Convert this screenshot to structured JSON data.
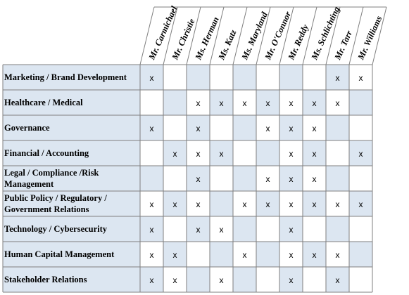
{
  "columns": [
    "Mr. Carmichael",
    "Mr. Christie",
    "Ms. Herman",
    "Ms. Katz",
    "Ms. Maryland",
    "Mr. O'Connor",
    "Mr. Reddy",
    "Ms. Schlichting",
    "Mr. Tarr",
    "Mr. Williams"
  ],
  "rows": [
    {
      "label": [
        "Marketing / Brand Development"
      ],
      "marks": [
        1,
        0,
        0,
        0,
        0,
        0,
        0,
        0,
        1,
        1
      ]
    },
    {
      "label": [
        "Healthcare / Medical"
      ],
      "marks": [
        0,
        0,
        1,
        1,
        1,
        1,
        1,
        1,
        1,
        0
      ]
    },
    {
      "label": [
        "Governance"
      ],
      "marks": [
        1,
        0,
        1,
        0,
        0,
        1,
        1,
        1,
        0,
        0
      ]
    },
    {
      "label": [
        "Financial / Accounting"
      ],
      "marks": [
        0,
        1,
        1,
        1,
        0,
        0,
        1,
        1,
        0,
        1
      ]
    },
    {
      "label": [
        "Legal / Compliance /Risk",
        "Management"
      ],
      "marks": [
        0,
        0,
        1,
        0,
        0,
        1,
        1,
        1,
        0,
        0
      ]
    },
    {
      "label": [
        "Public Policy / Regulatory /",
        "Government Relations"
      ],
      "marks": [
        1,
        1,
        1,
        0,
        1,
        1,
        1,
        1,
        1,
        1
      ]
    },
    {
      "label": [
        "Technology / Cybersecurity"
      ],
      "marks": [
        1,
        0,
        1,
        1,
        0,
        0,
        1,
        0,
        0,
        0
      ]
    },
    {
      "label": [
        "Human Capital Management"
      ],
      "marks": [
        1,
        1,
        0,
        0,
        1,
        0,
        1,
        1,
        1,
        0
      ]
    },
    {
      "label": [
        "Stakeholder Relations"
      ],
      "marks": [
        1,
        1,
        0,
        1,
        0,
        0,
        1,
        0,
        1,
        0
      ]
    }
  ],
  "mark_symbol": "x",
  "colors": {
    "shaded": "#dce6f1",
    "plain": "#ffffff",
    "grid": "#7f7f7f"
  }
}
